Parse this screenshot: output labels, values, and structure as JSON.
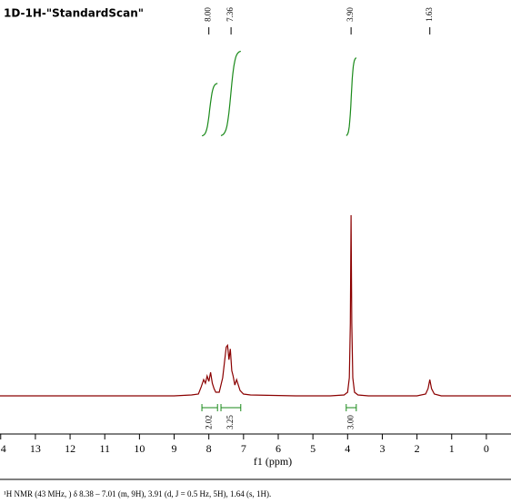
{
  "chart_data": {
    "type": "nmr",
    "title": "1D-1H-\"StandardScan\"",
    "x_label": "f1 (ppm)",
    "xlim": [
      14.02,
      -0.71
    ],
    "xticks": [
      14,
      13,
      12,
      11,
      10,
      9,
      8,
      7,
      6,
      5,
      4,
      3,
      2,
      1,
      0
    ],
    "ylim": [
      0,
      100
    ],
    "color": "#8b0000",
    "x": [
      14.02,
      9,
      8.5,
      8.3,
      8.22,
      8.15,
      8.1,
      8.05,
      8.0,
      7.95,
      7.9,
      7.85,
      7.8,
      7.7,
      7.6,
      7.5,
      7.46,
      7.42,
      7.38,
      7.34,
      7.3,
      7.25,
      7.2,
      7.1,
      7.0,
      6.8,
      5.5,
      4.5,
      4.1,
      4.0,
      3.95,
      3.92,
      3.9,
      3.88,
      3.85,
      3.8,
      3.7,
      3.4,
      2.0,
      1.75,
      1.68,
      1.63,
      1.58,
      1.5,
      1.3,
      0.5,
      -0.71
    ],
    "y": [
      0,
      0,
      0.5,
      1,
      5,
      9,
      7,
      11,
      8,
      13,
      7,
      4,
      2,
      2,
      10,
      27,
      28,
      20,
      26,
      14,
      11,
      6,
      9,
      3,
      1,
      0.5,
      0,
      0,
      0.5,
      2,
      10,
      40,
      100,
      40,
      10,
      2,
      0.5,
      0,
      0,
      1,
      4,
      9,
      4,
      1,
      0,
      0,
      0
    ],
    "peaks": [
      8,
      7.36,
      3.9,
      1.63
    ],
    "peak_labels": [
      "8.00",
      "7.36",
      "3.90",
      "1.63"
    ],
    "integral_color": "#1a8a1a",
    "integrals": [
      {
        "from": 8.2,
        "to": 7.75,
        "value": 2.02
      },
      {
        "from": 7.65,
        "to": 7.08,
        "value": 3.25
      },
      {
        "from": 4.04,
        "to": 3.75,
        "value": 3.0
      }
    ],
    "integral_labels": [
      "2.02",
      "3.25",
      "3.00"
    ],
    "footnote": "¹H NMR (43 MHz, ) δ 8.38 – 7.01 (m, 9H), 3.91 (d, J = 0.5 Hz, 5H), 1.64 (s, 1H)."
  }
}
